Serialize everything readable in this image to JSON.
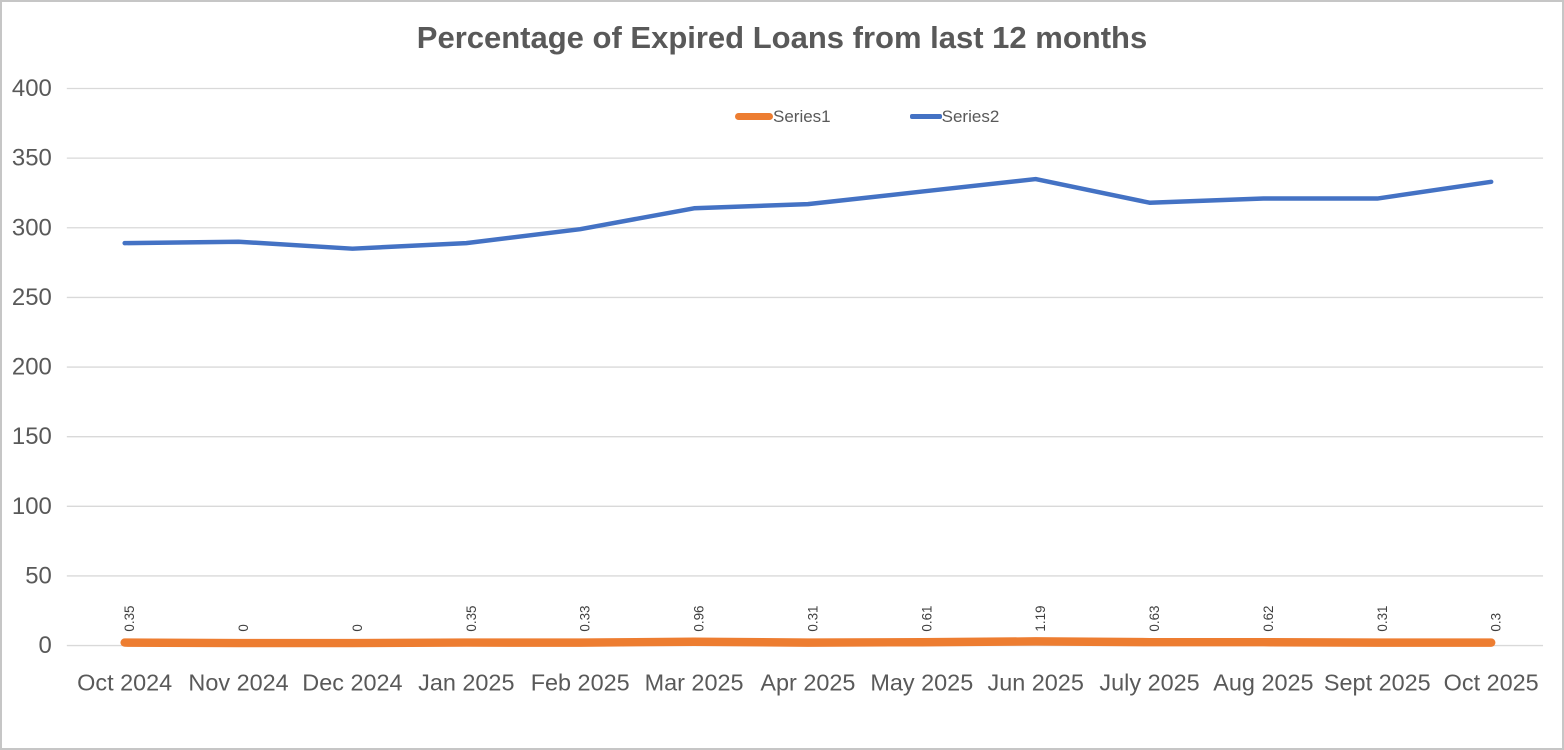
{
  "chart": {
    "title": "Percentage of Expired Loans from last 12 months"
  },
  "legend": {
    "series1_label": "Series1",
    "series2_label": "Series2"
  },
  "chart_data": {
    "type": "line",
    "title": "Percentage of Expired Loans from last 12 months",
    "categories": [
      "Oct 2024",
      "Nov 2024",
      "Dec 2024",
      "Jan 2025",
      "Feb 2025",
      "Mar 2025",
      "Apr 2025",
      "May 2025",
      "Jun 2025",
      "July 2025",
      "Aug 2025",
      "Sept 2025",
      "Oct 2025"
    ],
    "series": [
      {
        "name": "Series1",
        "color": "#ED7D31",
        "values": [
          0.35,
          0,
          0,
          0.35,
          0.33,
          0.96,
          0.31,
          0.61,
          1.19,
          0.63,
          0.62,
          0.31,
          0.3
        ],
        "data_labels": [
          "0.35",
          "0",
          "0",
          "0.35",
          "0.33",
          "0.96",
          "0.31",
          "0.61",
          "1.19",
          "0.63",
          "0.62",
          "0.31",
          "0.3"
        ],
        "data_labels_rotation": -90
      },
      {
        "name": "Series2",
        "color": "#4472C4",
        "values": [
          289,
          290,
          285,
          289,
          299,
          314,
          317,
          326,
          335,
          318,
          321,
          321,
          333
        ],
        "data_labels": null
      }
    ],
    "xlabel": "",
    "ylabel": "",
    "ylim": [
      0,
      400
    ],
    "yticks": [
      0,
      50,
      100,
      150,
      200,
      250,
      300,
      350,
      400
    ],
    "grid": "horizontal",
    "gridline_color": "#D9D9D9",
    "axis_text_color": "#595959",
    "data_label_color": "#404040",
    "legend_position": "top-center"
  }
}
